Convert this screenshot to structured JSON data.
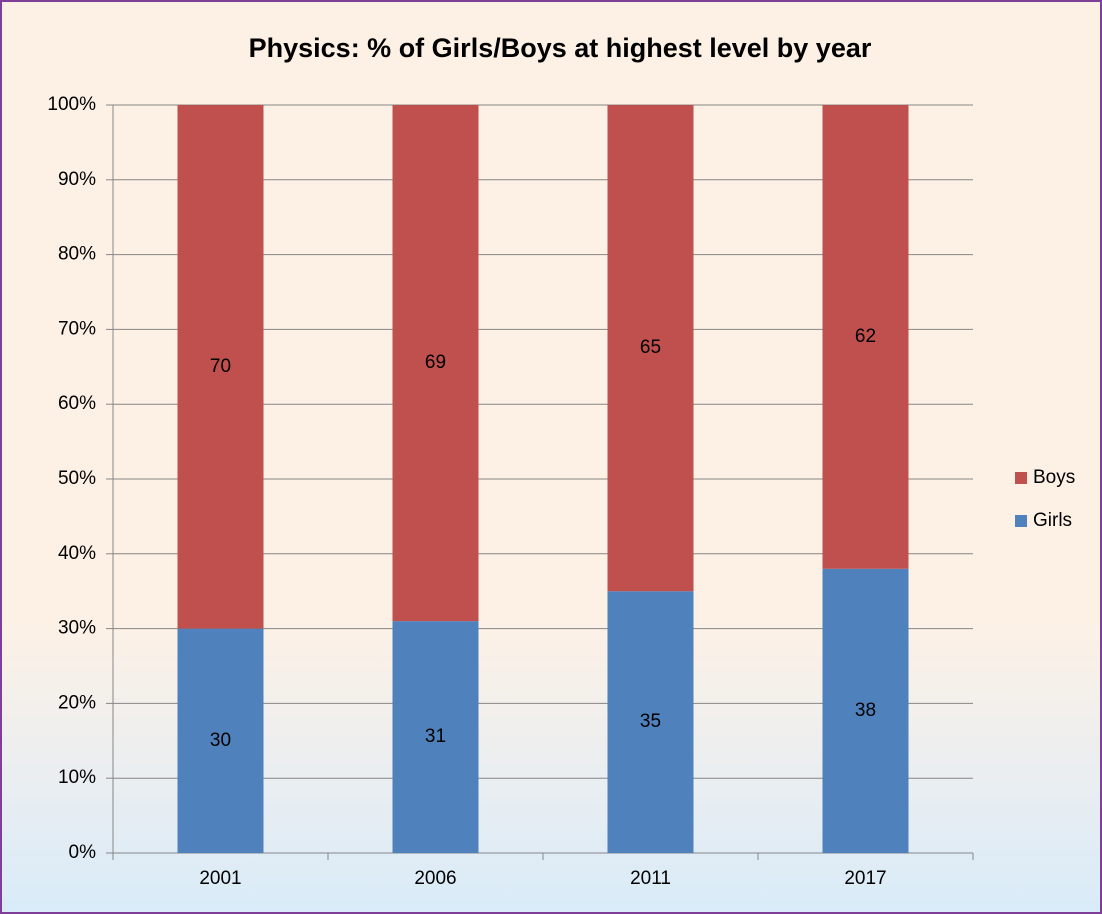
{
  "chart_data": {
    "type": "stacked_bar",
    "title": "Physics: % of Girls/Boys at highest level by year",
    "categories": [
      "2001",
      "2006",
      "2011",
      "2017"
    ],
    "series": [
      {
        "name": "Girls",
        "color": "#4f81bd",
        "values": [
          30,
          31,
          35,
          38
        ]
      },
      {
        "name": "Boys",
        "color": "#c0504d",
        "values": [
          70,
          69,
          65,
          62
        ]
      }
    ],
    "ylim": [
      0,
      100
    ],
    "yticks": [
      {
        "value": 0,
        "label": "0%"
      },
      {
        "value": 10,
        "label": "10%"
      },
      {
        "value": 20,
        "label": "20%"
      },
      {
        "value": 30,
        "label": "30%"
      },
      {
        "value": 40,
        "label": "40%"
      },
      {
        "value": 50,
        "label": "50%"
      },
      {
        "value": 60,
        "label": "60%"
      },
      {
        "value": 70,
        "label": "70%"
      },
      {
        "value": 80,
        "label": "80%"
      },
      {
        "value": 90,
        "label": "90%"
      },
      {
        "value": 100,
        "label": "100%"
      }
    ],
    "grid": true,
    "legend": "right"
  }
}
